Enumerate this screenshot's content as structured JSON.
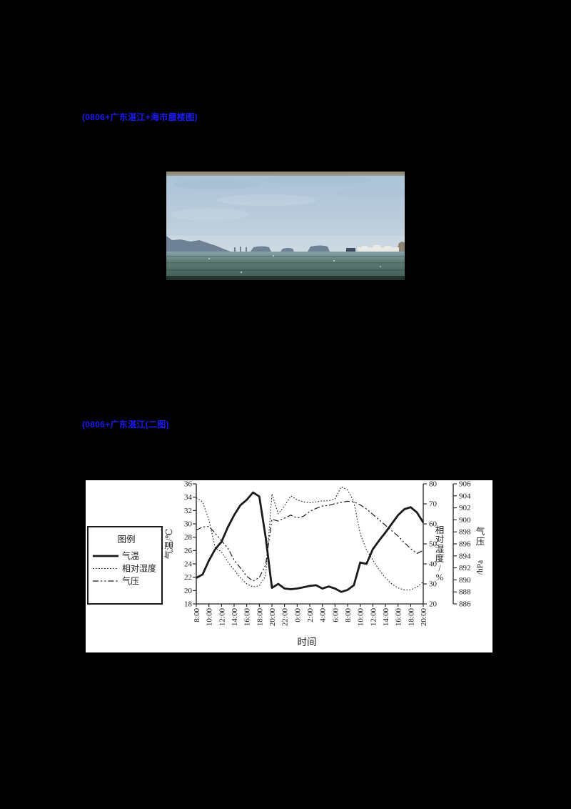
{
  "colors": {
    "page_bg": "#000000",
    "link_blue": "#1b1bf2",
    "chart_bg": "#ffffff",
    "chart_ink": "#1a1a1a",
    "sky_top": "#a9c2d8",
    "sky_bottom": "#c6d5e2",
    "haze": "#cdd9e1",
    "island": "#6e8296",
    "sea_top": "#8aa2ab",
    "sea_mid": "#5d7a72",
    "sea_bottom": "#44605a",
    "photo_top_band": "#97917f",
    "photo_bottom_band": "#26332c",
    "mirage_white": "#e8e9e5"
  },
  "captions": {
    "photo_link": "(0806+广东湛江+海市蜃楼图)",
    "chart_link": "(0806+广东湛江(二图)"
  },
  "chart_data": {
    "type": "line",
    "title": "",
    "xlabel": "时间",
    "x_tick_labels": [
      "8:00",
      "10:00",
      "12:00",
      "14:00",
      "16:00",
      "18:00",
      "20:00",
      "22:00",
      "0:00",
      "2:00",
      "4:00",
      "6:00",
      "8:00",
      "10:00",
      "12:00",
      "14:00",
      "16:00",
      "18:00",
      "20:00"
    ],
    "x_hours_span": 36,
    "grid": false,
    "legend_position": "left-outside",
    "axes": {
      "temperature": {
        "label": "气温/℃",
        "side": "left",
        "min": 18,
        "max": 36,
        "ticks": [
          18,
          20,
          22,
          24,
          26,
          28,
          30,
          32,
          34,
          36
        ]
      },
      "humidity": {
        "label": "相对湿度/%",
        "side": "right-inner",
        "min": 20,
        "max": 80,
        "ticks": [
          20,
          30,
          40,
          50,
          60,
          70,
          80
        ]
      },
      "pressure": {
        "label": "气压/hPa",
        "side": "right-outer",
        "min": 886,
        "max": 906,
        "ticks": [
          886,
          888,
          890,
          892,
          894,
          896,
          898,
          900,
          902,
          904,
          906
        ]
      }
    },
    "legend": {
      "title": "图例",
      "items": [
        {
          "label": "气温",
          "style": "solid-thick"
        },
        {
          "label": "相对湿度",
          "style": "dotted"
        },
        {
          "label": "气压",
          "style": "dashdot"
        }
      ]
    },
    "series": [
      {
        "name": "气温",
        "id": "temperature",
        "axis": "temperature",
        "style": "solid-thick",
        "values": [
          21.9,
          22.4,
          24.5,
          26.2,
          27.3,
          29.5,
          31.3,
          32.8,
          33.6,
          34.7,
          34.1,
          28.0,
          20.4,
          21.0,
          20.3,
          20.2,
          20.3,
          20.5,
          20.7,
          20.8,
          20.3,
          20.6,
          20.3,
          19.8,
          20.1,
          20.8,
          24.2,
          24.0,
          26.2,
          27.5,
          28.7,
          30.0,
          31.3,
          32.2,
          32.5,
          31.7,
          30.2
        ]
      },
      {
        "name": "相对湿度",
        "id": "humidity",
        "axis": "humidity",
        "style": "dotted",
        "values": [
          73,
          71,
          62,
          48,
          46,
          41,
          37,
          33,
          30,
          28.5,
          29,
          34,
          75,
          65,
          69,
          74,
          72,
          71,
          70.5,
          71,
          71.5,
          71.5,
          72.5,
          78.5,
          77,
          71,
          55,
          47,
          42,
          37,
          33,
          30,
          28,
          27,
          27,
          28.5,
          31
        ]
      },
      {
        "name": "气压",
        "id": "pressure",
        "axis": "pressure",
        "style": "dashdot",
        "values": [
          898.3,
          898.8,
          898.9,
          897.8,
          896.5,
          895.3,
          893.3,
          892.0,
          890.6,
          889.8,
          890.4,
          892.5,
          900.1,
          899.8,
          900.3,
          900.8,
          900.3,
          900.6,
          901.4,
          901.9,
          902.3,
          902.4,
          902.7,
          902.9,
          903.1,
          903.0,
          902.5,
          901.8,
          900.9,
          900.0,
          899.1,
          898.2,
          897.3,
          896.2,
          895.2,
          894.4,
          894.9
        ]
      }
    ]
  }
}
